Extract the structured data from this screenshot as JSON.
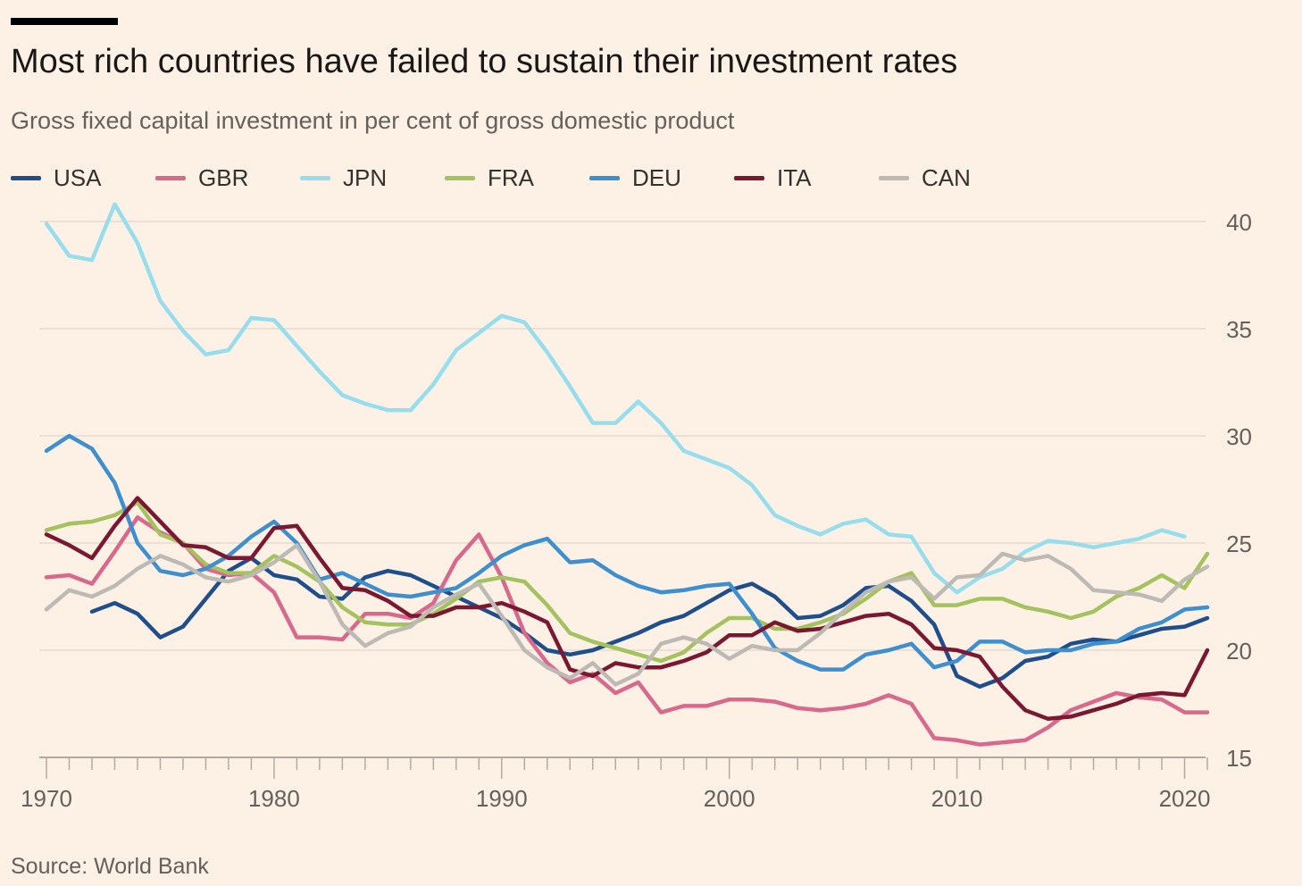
{
  "title": "Most rich countries have failed to sustain their investment rates",
  "subtitle": "Gross fixed capital investment in per cent of gross domestic product",
  "source": "Source: World Bank",
  "chart_data": {
    "type": "line",
    "title": "Most rich countries have failed to sustain their investment rates",
    "subtitle": "Gross fixed capital investment in per cent of gross domestic product",
    "xlabel": "",
    "ylabel": "",
    "xlim": [
      1970,
      2021
    ],
    "ylim": [
      15,
      40
    ],
    "yticks": [
      15,
      20,
      25,
      30,
      35,
      40
    ],
    "xticks": [
      1970,
      1980,
      1990,
      2000,
      2010,
      2020
    ],
    "grid": true,
    "legend_position": "top",
    "series": [
      {
        "name": "USA",
        "color": "#1F4E8C",
        "start": 1972,
        "values": [
          21.8,
          22.2,
          21.7,
          20.6,
          21.1,
          22.4,
          23.7,
          24.3,
          23.5,
          23.3,
          22.5,
          22.4,
          23.4,
          23.7,
          23.5,
          23.0,
          22.5,
          22.0,
          21.5,
          20.8,
          20.0,
          19.8,
          20.0,
          20.4,
          20.8,
          21.3,
          21.6,
          22.2,
          22.8,
          23.1,
          22.5,
          21.5,
          21.6,
          22.1,
          22.9,
          23.0,
          22.3,
          21.2,
          18.8,
          18.3,
          18.7,
          19.5,
          19.7,
          20.3,
          20.5,
          20.4,
          20.7,
          21.0,
          21.1,
          21.5
        ]
      },
      {
        "name": "GBR",
        "color": "#D9698C",
        "start": 1970,
        "values": [
          23.4,
          23.5,
          23.1,
          24.6,
          26.2,
          25.5,
          25.0,
          23.8,
          23.5,
          23.6,
          22.7,
          20.6,
          20.6,
          20.5,
          21.7,
          21.7,
          21.5,
          22.2,
          24.2,
          25.4,
          23.4,
          20.8,
          19.4,
          18.5,
          18.9,
          18.0,
          18.5,
          17.1,
          17.4,
          17.4,
          17.7,
          17.7,
          17.6,
          17.3,
          17.2,
          17.3,
          17.5,
          17.9,
          17.5,
          15.9,
          15.8,
          15.6,
          15.7,
          15.8,
          16.4,
          17.2,
          17.6,
          18.0,
          17.8,
          17.7,
          17.1,
          17.1
        ]
      },
      {
        "name": "JPN",
        "color": "#96DDEE",
        "start": 1970,
        "values": [
          39.9,
          38.4,
          38.2,
          40.8,
          39.0,
          36.3,
          34.9,
          33.8,
          34.0,
          35.5,
          35.4,
          34.2,
          33.0,
          31.9,
          31.5,
          31.2,
          31.2,
          32.4,
          34.0,
          34.8,
          35.6,
          35.3,
          33.9,
          32.3,
          30.6,
          30.6,
          31.6,
          30.6,
          29.3,
          28.9,
          28.5,
          27.7,
          26.3,
          25.8,
          25.4,
          25.9,
          26.1,
          25.4,
          25.3,
          23.6,
          22.7,
          23.4,
          23.8,
          24.6,
          25.1,
          25.0,
          24.8,
          25.0,
          25.2,
          25.6,
          25.3
        ]
      },
      {
        "name": "FRA",
        "color": "#A4C25E",
        "start": 1970,
        "values": [
          25.6,
          25.9,
          26.0,
          26.3,
          26.9,
          25.4,
          25.0,
          24.0,
          23.6,
          23.6,
          24.4,
          23.9,
          23.2,
          22.0,
          21.3,
          21.2,
          21.2,
          21.7,
          22.4,
          23.2,
          23.4,
          23.2,
          22.1,
          20.8,
          20.4,
          20.1,
          19.8,
          19.5,
          19.9,
          20.8,
          21.5,
          21.5,
          21.0,
          21.0,
          21.3,
          21.7,
          22.4,
          23.2,
          23.6,
          22.1,
          22.1,
          22.4,
          22.4,
          22.0,
          21.8,
          21.5,
          21.8,
          22.5,
          22.9,
          23.5,
          22.9,
          24.5
        ]
      },
      {
        "name": "DEU",
        "color": "#3E8FD0",
        "start": 1970,
        "values": [
          29.3,
          30.0,
          29.4,
          27.8,
          25.0,
          23.7,
          23.5,
          23.8,
          24.4,
          25.3,
          26.0,
          25.0,
          23.3,
          23.6,
          23.1,
          22.6,
          22.5,
          22.7,
          22.9,
          23.6,
          24.4,
          24.9,
          25.2,
          24.1,
          24.2,
          23.5,
          23.0,
          22.7,
          22.8,
          23.0,
          23.1,
          21.7,
          20.1,
          19.5,
          19.1,
          19.1,
          19.8,
          20.0,
          20.3,
          19.2,
          19.5,
          20.4,
          20.4,
          19.9,
          20.0,
          20.0,
          20.3,
          20.4,
          21.0,
          21.3,
          21.9,
          22.0
        ]
      },
      {
        "name": "ITA",
        "color": "#7A1731",
        "start": 1970,
        "values": [
          25.4,
          24.9,
          24.3,
          25.8,
          27.1,
          26.0,
          24.9,
          24.8,
          24.3,
          24.3,
          25.7,
          25.8,
          24.3,
          22.9,
          22.8,
          22.3,
          21.6,
          21.6,
          22.0,
          22.0,
          22.2,
          21.8,
          21.3,
          19.1,
          18.8,
          19.4,
          19.2,
          19.2,
          19.5,
          19.9,
          20.7,
          20.7,
          21.3,
          20.9,
          21.0,
          21.3,
          21.6,
          21.7,
          21.2,
          20.1,
          20.0,
          19.7,
          18.3,
          17.2,
          16.8,
          16.9,
          17.2,
          17.5,
          17.9,
          18.0,
          17.9,
          20.0
        ]
      },
      {
        "name": "CAN",
        "color": "#BDB9B4",
        "start": 1970,
        "values": [
          21.9,
          22.8,
          22.5,
          23.0,
          23.8,
          24.4,
          24.0,
          23.4,
          23.2,
          23.5,
          24.1,
          24.9,
          23.2,
          21.2,
          20.2,
          20.8,
          21.1,
          22.0,
          22.6,
          23.1,
          21.6,
          20.0,
          19.2,
          18.7,
          19.4,
          18.4,
          18.9,
          20.3,
          20.6,
          20.3,
          19.6,
          20.2,
          20.0,
          20.0,
          20.8,
          21.8,
          22.7,
          23.2,
          23.4,
          22.4,
          23.4,
          23.5,
          24.5,
          24.2,
          24.4,
          23.8,
          22.8,
          22.7,
          22.6,
          22.3,
          23.3,
          23.9
        ]
      }
    ]
  }
}
